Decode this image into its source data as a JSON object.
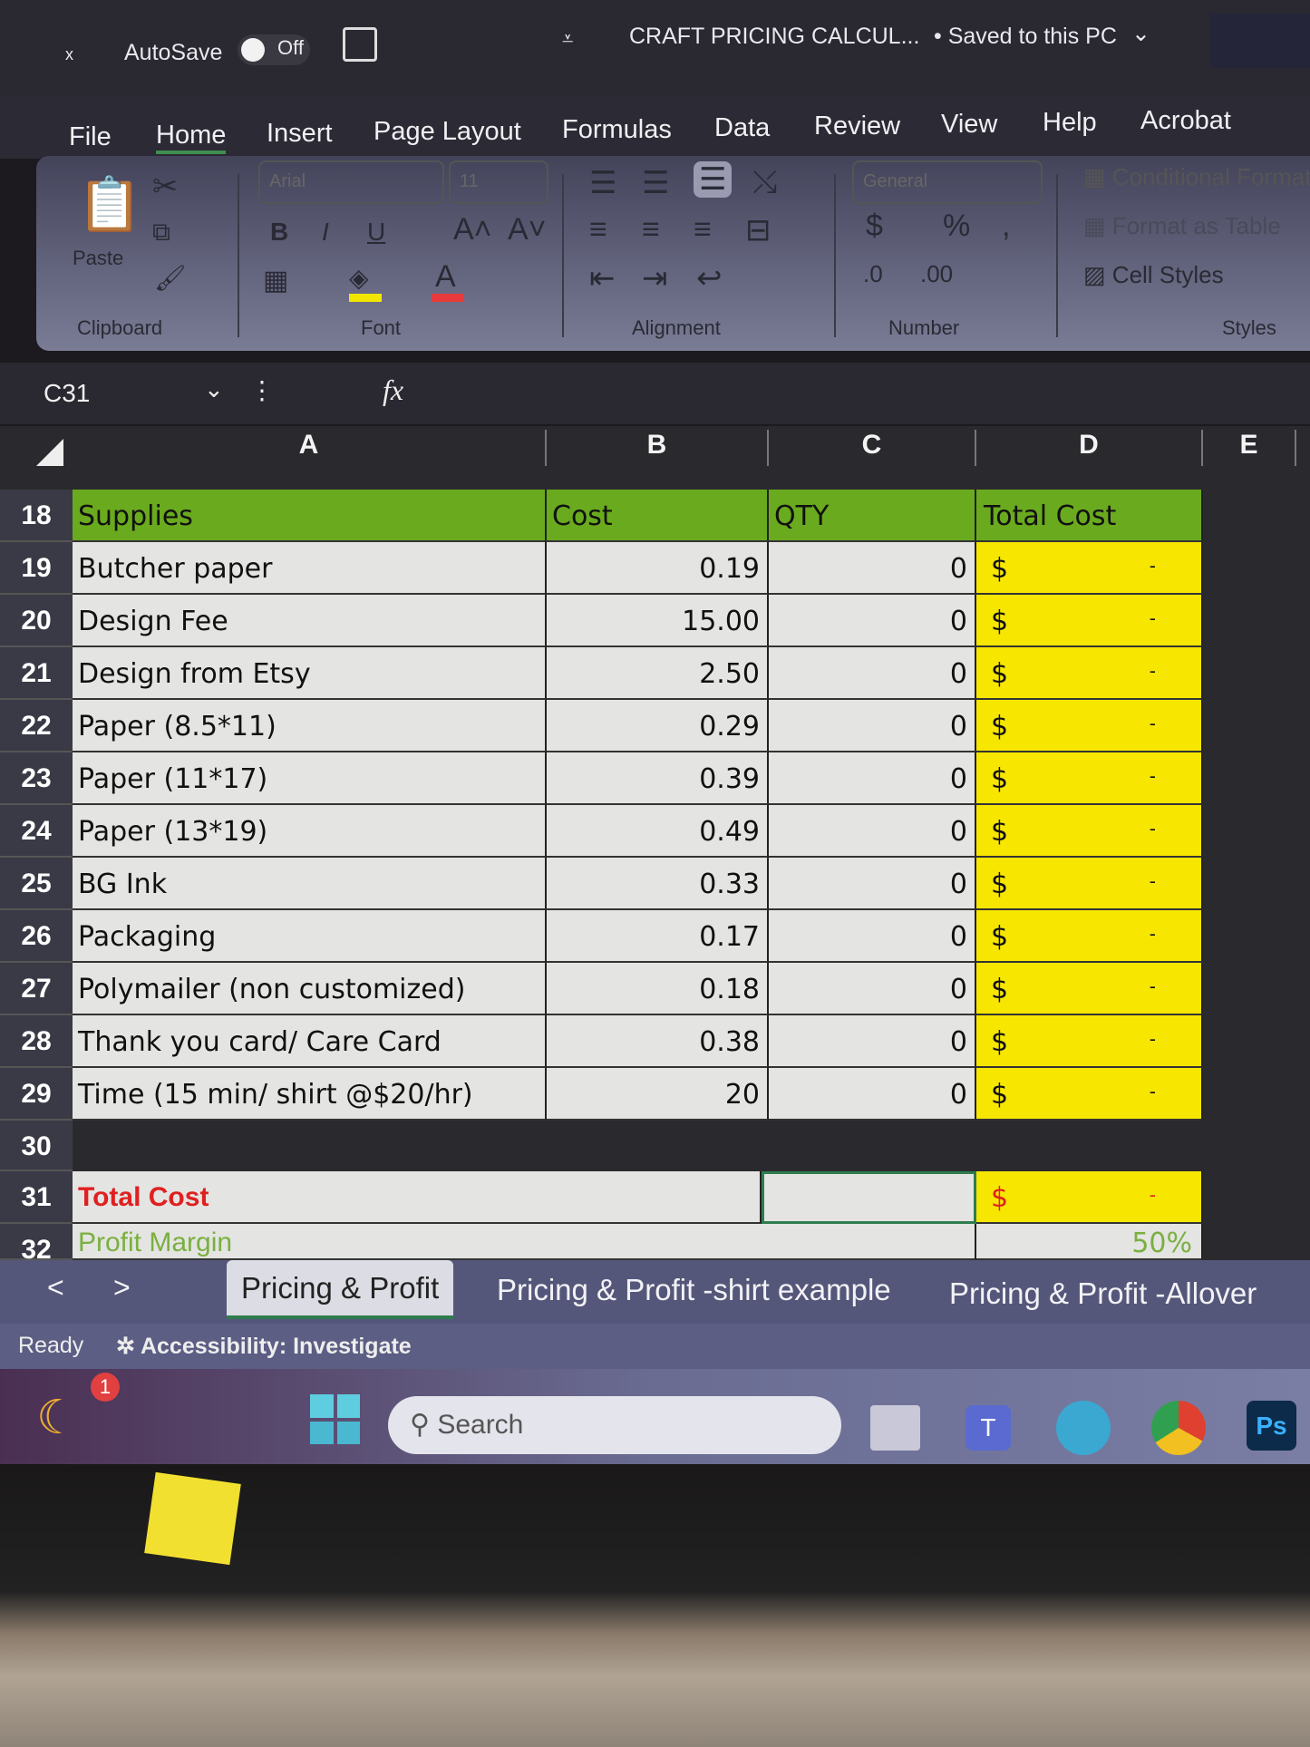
{
  "titlebar": {
    "close": "x",
    "autosave_label": "AutoSave",
    "autosave_state": "Off",
    "filename": "CRAFT PRICING CALCUL...",
    "save_status": "• Saved to this PC",
    "save_icon": "save-icon"
  },
  "menu": {
    "items": [
      "File",
      "Home",
      "Insert",
      "Page Layout",
      "Formulas",
      "Data",
      "Review",
      "View",
      "Help",
      "Acrobat"
    ],
    "active": "Home"
  },
  "ribbon": {
    "groups": [
      "Clipboard",
      "Font",
      "Alignment",
      "Number",
      "Styles"
    ],
    "paste": "Paste",
    "font_name": "Arial",
    "font_size": "11",
    "number_format": "General",
    "styles": [
      "Conditional Formatting",
      "Format as Table",
      "Cell Styles"
    ],
    "fill_color": "#f2e600",
    "font_color": "#e83a3a"
  },
  "formula_bar": {
    "name_box": "C31",
    "fx": "fx",
    "value": ""
  },
  "columns": [
    "A",
    "B",
    "C",
    "D",
    "E"
  ],
  "header_row": {
    "num": "18",
    "a": "Supplies",
    "b": "Cost",
    "c": "QTY",
    "d": "Total Cost",
    "color": "#6aaa1e"
  },
  "rows": [
    {
      "num": "19",
      "item": "Butcher paper",
      "cost": "0.19",
      "qty": "0",
      "cur": "$",
      "total": "-"
    },
    {
      "num": "20",
      "item": "Design Fee",
      "cost": "15.00",
      "qty": "0",
      "cur": "$",
      "total": "-"
    },
    {
      "num": "21",
      "item": "Design from Etsy",
      "cost": "2.50",
      "qty": "0",
      "cur": "$",
      "total": "-"
    },
    {
      "num": "22",
      "item": "Paper (8.5*11)",
      "cost": "0.29",
      "qty": "0",
      "cur": "$",
      "total": "-"
    },
    {
      "num": "23",
      "item": "Paper (11*17)",
      "cost": "0.39",
      "qty": "0",
      "cur": "$",
      "total": "-"
    },
    {
      "num": "24",
      "item": "Paper (13*19)",
      "cost": "0.49",
      "qty": "0",
      "cur": "$",
      "total": "-"
    },
    {
      "num": "25",
      "item": "BG Ink",
      "cost": "0.33",
      "qty": "0",
      "cur": "$",
      "total": "-"
    },
    {
      "num": "26",
      "item": "Packaging",
      "cost": "0.17",
      "qty": "0",
      "cur": "$",
      "total": "-"
    },
    {
      "num": "27",
      "item": "Polymailer (non customized)",
      "cost": "0.18",
      "qty": "0",
      "cur": "$",
      "total": "-"
    },
    {
      "num": "28",
      "item": "Thank you card/ Care Card",
      "cost": "0.38",
      "qty": "0",
      "cur": "$",
      "total": "-"
    },
    {
      "num": "29",
      "item": "Time (15 min/ shirt @$20/hr)",
      "cost": "20",
      "qty": "0",
      "cur": "$",
      "total": "-"
    }
  ],
  "row30": {
    "num": "30"
  },
  "total_row": {
    "num": "31",
    "label": "Total Cost",
    "cur": "$",
    "total": "-"
  },
  "margin_row": {
    "num": "32",
    "label": "Profit Margin",
    "value": "50%"
  },
  "sheet_tabs": {
    "prev": "<",
    "next": ">",
    "tabs": [
      "Pricing & Profit",
      "Pricing & Profit -shirt example",
      "Pricing & Profit -Allover"
    ],
    "active": "Pricing & Profit"
  },
  "status": {
    "ready": "Ready",
    "accessibility": "Accessibility: Investigate"
  },
  "taskbar": {
    "search_placeholder": "Search",
    "weather_badge": "1",
    "apps": [
      "task-view",
      "teams",
      "copilot",
      "chrome",
      "photoshop"
    ],
    "ps_label": "Ps"
  },
  "colors": {
    "yellow": "#f7e600",
    "green_header": "#6aaa1e",
    "total_red": "#e02020",
    "cell_bg": "#e4e4e2"
  }
}
